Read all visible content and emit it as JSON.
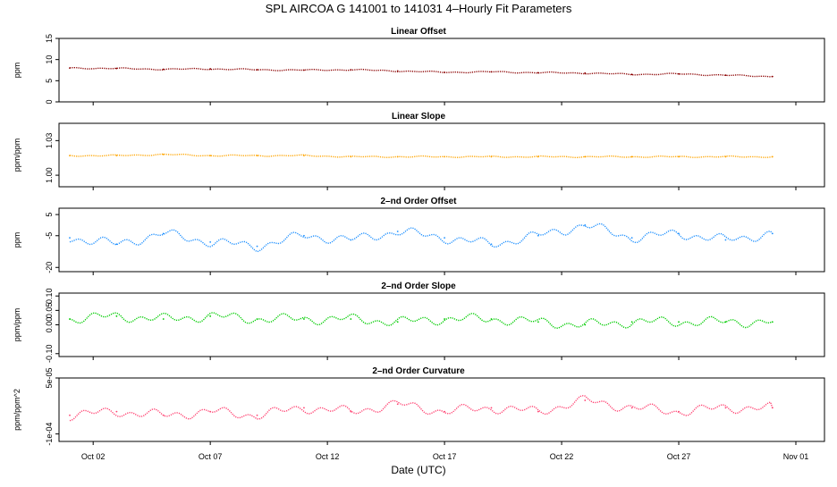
{
  "figure": {
    "title": "SPL   AIRCOA G   141001 to 141031   4–Hourly Fit Parameters",
    "xlabel": "Date (UTC)",
    "xticks": [
      "Oct 02",
      "Oct 07",
      "Oct 12",
      "Oct 17",
      "Oct 22",
      "Oct 27",
      "Nov 01"
    ]
  },
  "chart_data": [
    {
      "type": "line",
      "title": "Linear Offset",
      "ylabel": "ppm",
      "color": "#8b0000",
      "ylim": [
        0,
        15
      ],
      "yticks": [
        "0",
        "5",
        "10",
        "15"
      ],
      "x": [
        "Oct 01",
        "Oct 03",
        "Oct 05",
        "Oct 07",
        "Oct 09",
        "Oct 11",
        "Oct 13",
        "Oct 15",
        "Oct 17",
        "Oct 19",
        "Oct 21",
        "Oct 23",
        "Oct 25",
        "Oct 27",
        "Oct 29",
        "Oct 31"
      ],
      "series": [
        {
          "values": [
            8.0,
            7.9,
            7.7,
            7.8,
            7.6,
            7.5,
            7.6,
            7.3,
            7.0,
            7.1,
            6.9,
            6.8,
            6.5,
            6.6,
            6.3,
            6.0
          ]
        }
      ]
    },
    {
      "type": "line",
      "title": "Linear Slope",
      "ylabel": "ppm/ppm",
      "color": "#ffa500",
      "ylim": [
        0.99,
        1.045
      ],
      "yticks": [
        "1.00",
        "1.03"
      ],
      "x": [
        "Oct 01",
        "Oct 03",
        "Oct 05",
        "Oct 07",
        "Oct 09",
        "Oct 11",
        "Oct 13",
        "Oct 15",
        "Oct 17",
        "Oct 19",
        "Oct 21",
        "Oct 23",
        "Oct 25",
        "Oct 27",
        "Oct 29",
        "Oct 31"
      ],
      "series": [
        {
          "values": [
            1.017,
            1.017,
            1.018,
            1.017,
            1.017,
            1.017,
            1.016,
            1.016,
            1.016,
            1.016,
            1.016,
            1.016,
            1.016,
            1.016,
            1.016,
            1.016
          ]
        }
      ]
    },
    {
      "type": "line",
      "title": "2–nd Order Offset",
      "ylabel": "ppm",
      "color": "#1e90ff",
      "ylim": [
        -22,
        8
      ],
      "yticks": [
        "-20",
        "-5",
        "5"
      ],
      "x": [
        "Oct 01",
        "Oct 03",
        "Oct 05",
        "Oct 07",
        "Oct 09",
        "Oct 11",
        "Oct 13",
        "Oct 15",
        "Oct 17",
        "Oct 19",
        "Oct 21",
        "Oct 23",
        "Oct 25",
        "Oct 27",
        "Oct 29",
        "Oct 31"
      ],
      "series": [
        {
          "values": [
            -6,
            -9,
            -4,
            -8,
            -10,
            -5,
            -7,
            -3,
            -6,
            -9,
            -5,
            0,
            -6,
            -4,
            -7,
            -4
          ]
        }
      ]
    },
    {
      "type": "line",
      "title": "2–nd Order Slope",
      "ylabel": "ppm/ppm",
      "color": "#00cc00",
      "ylim": [
        -0.11,
        0.11
      ],
      "yticks": [
        "-0.10",
        "0.00",
        "0.05",
        "0.10"
      ],
      "x": [
        "Oct 01",
        "Oct 03",
        "Oct 05",
        "Oct 07",
        "Oct 09",
        "Oct 11",
        "Oct 13",
        "Oct 15",
        "Oct 17",
        "Oct 19",
        "Oct 21",
        "Oct 23",
        "Oct 25",
        "Oct 27",
        "Oct 29",
        "Oct 31"
      ],
      "series": [
        {
          "values": [
            0.02,
            0.03,
            0.02,
            0.03,
            0.02,
            0.02,
            0.02,
            0.01,
            0.02,
            0.02,
            0.01,
            0.0,
            0.01,
            0.01,
            0.01,
            0.01
          ]
        }
      ]
    },
    {
      "type": "line",
      "title": "2–nd Order Curvature",
      "ylabel": "ppm/ppm^2",
      "color": "#ff4070",
      "ylim": [
        -0.00012,
        5e-05
      ],
      "yticks": [
        "-1e-04",
        "5e-05"
      ],
      "x": [
        "Oct 01",
        "Oct 03",
        "Oct 05",
        "Oct 07",
        "Oct 09",
        "Oct 11",
        "Oct 13",
        "Oct 15",
        "Oct 17",
        "Oct 19",
        "Oct 21",
        "Oct 23",
        "Oct 25",
        "Oct 27",
        "Oct 29",
        "Oct 31"
      ],
      "series": [
        {
          "values": [
            -5e-05,
            -4e-05,
            -5e-05,
            -4e-05,
            -5e-05,
            -3e-05,
            -4e-05,
            -2e-05,
            -4e-05,
            -3e-05,
            -4e-05,
            -1e-05,
            -3e-05,
            -4e-05,
            -3e-05,
            -3e-05
          ]
        }
      ]
    }
  ]
}
